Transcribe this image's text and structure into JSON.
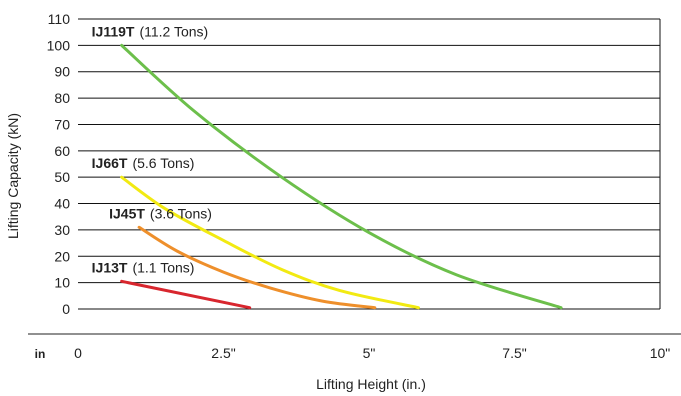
{
  "chart_data": {
    "type": "line",
    "xlabel": "Lifting Height (in.)",
    "ylabel": "Lifting Capacity (kN)",
    "x_unit_label": "in",
    "xlim": [
      0,
      10
    ],
    "ylim": [
      0,
      110
    ],
    "grid": true,
    "x_ticks": [
      {
        "value": 0,
        "label": "0"
      },
      {
        "value": 2.5,
        "label": "2.5\""
      },
      {
        "value": 5,
        "label": "5\""
      },
      {
        "value": 7.5,
        "label": "7.5\""
      },
      {
        "value": 10,
        "label": "10\""
      }
    ],
    "y_ticks": [
      {
        "value": 0,
        "label": "0"
      },
      {
        "value": 10,
        "label": "10"
      },
      {
        "value": 20,
        "label": "20"
      },
      {
        "value": 30,
        "label": "30"
      },
      {
        "value": 40,
        "label": "40"
      },
      {
        "value": 50,
        "label": "50"
      },
      {
        "value": 60,
        "label": "60"
      },
      {
        "value": 70,
        "label": "70"
      },
      {
        "value": 80,
        "label": "80"
      },
      {
        "value": 90,
        "label": "90"
      },
      {
        "value": 100,
        "label": "100"
      },
      {
        "value": 110,
        "label": "110"
      }
    ],
    "series": [
      {
        "name": "IJ119T",
        "note": "(11.2 Tons)",
        "color": "#6cbf4b",
        "x": [
          0.75,
          2.0,
          3.5,
          5.0,
          6.5,
          8.3
        ],
        "y": [
          100,
          75,
          50,
          29,
          13,
          0.5
        ]
      },
      {
        "name": "IJ66T",
        "note": "(5.6 Tons)",
        "color": "#f2ea12",
        "x": [
          0.75,
          1.5,
          2.5,
          3.5,
          4.5,
          5.85
        ],
        "y": [
          50,
          38,
          26,
          15,
          7,
          0.5
        ]
      },
      {
        "name": "IJ45T",
        "note": "(3.6 Tons)",
        "color": "#ee8f2b",
        "x": [
          1.05,
          1.7,
          2.5,
          3.3,
          4.2,
          5.1
        ],
        "y": [
          31,
          22,
          14,
          8,
          3,
          0.5
        ]
      },
      {
        "name": "IJ13T",
        "note": "(1.1 Tons)",
        "color": "#d8262e",
        "x": [
          0.75,
          2.95
        ],
        "y": [
          10.5,
          0.5
        ]
      }
    ]
  }
}
